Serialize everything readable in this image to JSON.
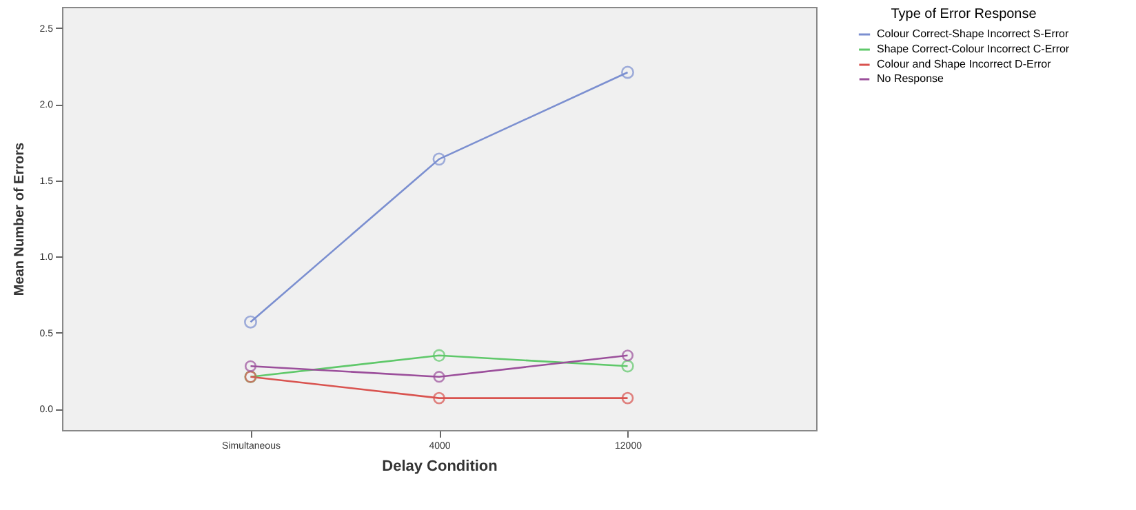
{
  "chart_data": {
    "type": "line",
    "xlabel": "Delay Condition",
    "ylabel": "Mean Number of Errors",
    "legend_title": "Type  of Error Response",
    "categories": [
      "Simultaneous",
      "4000",
      "12000"
    ],
    "series": [
      {
        "name": "Colour Correct-Shape Incorrect S-Error",
        "color": "#7b8fd0",
        "values": [
          0.57,
          1.64,
          2.21
        ]
      },
      {
        "name": "Shape Correct-Colour Incorrect C-Error",
        "color": "#5fc86a",
        "values": [
          0.21,
          0.35,
          0.28
        ]
      },
      {
        "name": "Colour and Shape Incorrect D-Error",
        "color": "#d9534f",
        "values": [
          0.21,
          0.07,
          0.07
        ]
      },
      {
        "name": "No Response",
        "color": "#9b4f9b",
        "values": [
          0.28,
          0.21,
          0.35
        ]
      }
    ],
    "ylim": [
      -0.14,
      2.64
    ],
    "yticks": [
      {
        "value": 0,
        "label": "0.0"
      },
      {
        "value": 0.5,
        "label": "0.5"
      },
      {
        "value": 1,
        "label": "1.0"
      },
      {
        "value": 1.5,
        "label": "1.5"
      },
      {
        "value": 2,
        "label": "2.0"
      },
      {
        "value": 2.5,
        "label": "2.5"
      }
    ],
    "grid": false,
    "legend": "top right",
    "marker": "circle",
    "line_style": "solid"
  }
}
